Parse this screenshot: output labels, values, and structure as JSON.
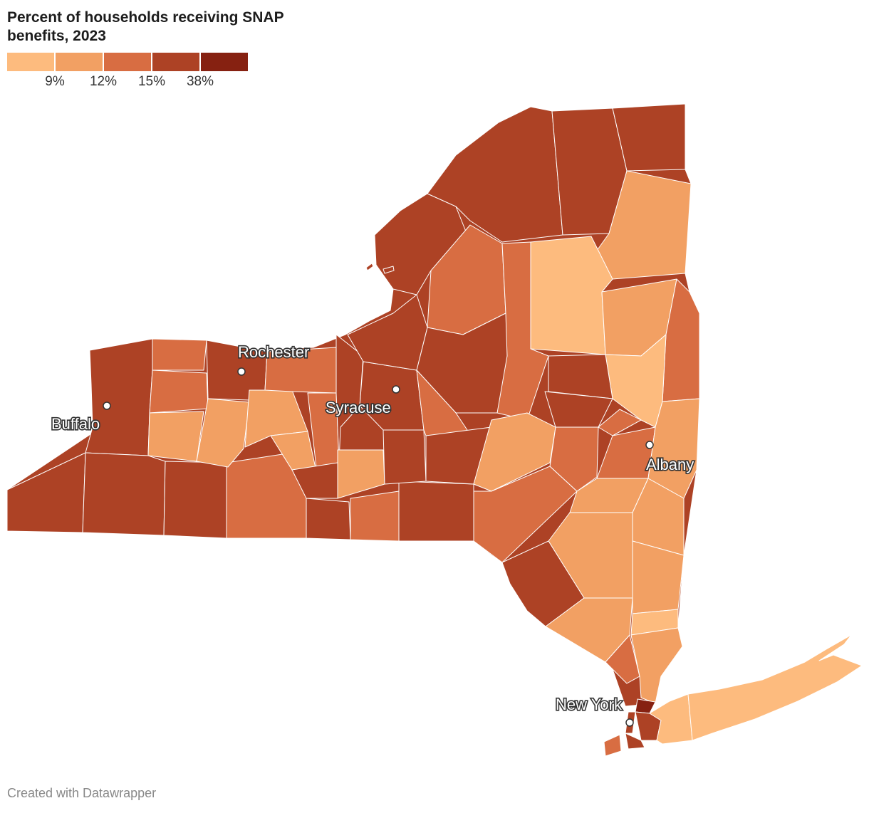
{
  "title": "Percent of households receiving SNAP benefits, 2023",
  "legend": {
    "colors": [
      "#fdbb7e",
      "#f2a063",
      "#d86d42",
      "#ad4225",
      "#862111"
    ],
    "labels": [
      "9%",
      "12%",
      "15%",
      "38%"
    ]
  },
  "cities": [
    {
      "name": "Rochester"
    },
    {
      "name": "Buffalo"
    },
    {
      "name": "Syracuse"
    },
    {
      "name": "Albany"
    },
    {
      "name": "New York"
    }
  ],
  "credit": "Created with Datawrapper"
}
